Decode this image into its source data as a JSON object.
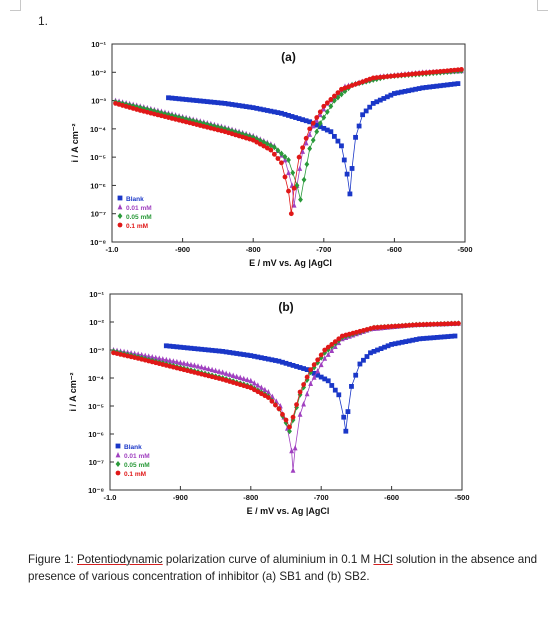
{
  "item_number": "1.",
  "caption": {
    "prefix": "Figure 1: ",
    "term1": "Potentiodynamic",
    "part2": " polarization curve of aluminium in 0.1 M ",
    "term2": "HCl",
    "part3": " solution in the absence and presence of various concentration of inhibitor (a) SB1 and (b) SB2."
  },
  "colors": {
    "blank": "#1a37c8",
    "c001": "#a040c0",
    "c005": "#2a9a3a",
    "c01": "#e01818"
  },
  "chart_data": [
    {
      "type": "scatter",
      "title": "(a)",
      "xlabel": "E / mV vs. Ag |AgCl",
      "ylabel": "i / A cm⁻²",
      "xlim": [
        -1000,
        -500
      ],
      "ylim": [
        -8,
        -1
      ],
      "yscale": "log",
      "x_ticks": [
        "-1.0",
        "-900",
        "-800",
        "-700",
        "-600",
        "-500"
      ],
      "y_ticks": [
        "10⁻¹",
        "10⁻²",
        "10⁻³",
        "10⁻⁴",
        "10⁻⁵",
        "10⁻⁶",
        "10⁻⁷",
        "10⁻⁸"
      ],
      "legend_position": "bottom-left",
      "series": [
        {
          "name": "Blank",
          "marker": "square",
          "color": "#1a37c8",
          "ecorr": -665,
          "points": [
            [
              -920,
              -2.9
            ],
            [
              -880,
              -3.0
            ],
            [
              -840,
              -3.1
            ],
            [
              -800,
              -3.25
            ],
            [
              -760,
              -3.45
            ],
            [
              -720,
              -3.75
            ],
            [
              -690,
              -4.1
            ],
            [
              -675,
              -4.6
            ],
            [
              -667,
              -5.6
            ],
            [
              -663,
              -6.3
            ],
            [
              -660,
              -5.4
            ],
            [
              -655,
              -4.3
            ],
            [
              -645,
              -3.5
            ],
            [
              -630,
              -3.1
            ],
            [
              -600,
              -2.75
            ],
            [
              -560,
              -2.55
            ],
            [
              -510,
              -2.4
            ]
          ]
        },
        {
          "name": "0.01 mM",
          "marker": "triangle",
          "color": "#a040c0",
          "ecorr": -740,
          "points": [
            [
              -995,
              -3.0
            ],
            [
              -960,
              -3.2
            ],
            [
              -920,
              -3.45
            ],
            [
              -880,
              -3.7
            ],
            [
              -840,
              -3.95
            ],
            [
              -800,
              -4.25
            ],
            [
              -770,
              -4.6
            ],
            [
              -755,
              -5.1
            ],
            [
              -745,
              -6.0
            ],
            [
              -742,
              -6.7
            ],
            [
              -738,
              -6.0
            ],
            [
              -730,
              -4.8
            ],
            [
              -715,
              -3.9
            ],
            [
              -695,
              -3.1
            ],
            [
              -670,
              -2.5
            ],
            [
              -620,
              -2.15
            ],
            [
              -560,
              -2.0
            ],
            [
              -505,
              -1.95
            ]
          ]
        },
        {
          "name": "0.05 mM",
          "marker": "diamond",
          "color": "#2a9a3a",
          "ecorr": -730,
          "points": [
            [
              -995,
              -3.05
            ],
            [
              -960,
              -3.25
            ],
            [
              -920,
              -3.5
            ],
            [
              -880,
              -3.75
            ],
            [
              -840,
              -4.0
            ],
            [
              -800,
              -4.3
            ],
            [
              -770,
              -4.65
            ],
            [
              -750,
              -5.1
            ],
            [
              -738,
              -6.0
            ],
            [
              -733,
              -6.5
            ],
            [
              -728,
              -5.8
            ],
            [
              -720,
              -4.7
            ],
            [
              -705,
              -3.8
            ],
            [
              -685,
              -3.0
            ],
            [
              -660,
              -2.45
            ],
            [
              -610,
              -2.15
            ],
            [
              -555,
              -2.05
            ],
            [
              -505,
              -1.95
            ]
          ]
        },
        {
          "name": "0.1 mM",
          "marker": "circle",
          "color": "#e01818",
          "ecorr": -746,
          "points": [
            [
              -995,
              -3.1
            ],
            [
              -960,
              -3.35
            ],
            [
              -920,
              -3.6
            ],
            [
              -880,
              -3.85
            ],
            [
              -840,
              -4.1
            ],
            [
              -800,
              -4.4
            ],
            [
              -775,
              -4.75
            ],
            [
              -760,
              -5.2
            ],
            [
              -750,
              -6.2
            ],
            [
              -746,
              -7.0
            ],
            [
              -742,
              -6.1
            ],
            [
              -735,
              -5.0
            ],
            [
              -720,
              -4.0
            ],
            [
              -700,
              -3.2
            ],
            [
              -675,
              -2.6
            ],
            [
              -630,
              -2.2
            ],
            [
              -570,
              -2.05
            ],
            [
              -505,
              -1.9
            ]
          ]
        }
      ]
    },
    {
      "type": "scatter",
      "title": "(b)",
      "xlabel": "E / mV vs. Ag |AgCl",
      "ylabel": "i / A cm⁻²",
      "xlim": [
        -1000,
        -500
      ],
      "ylim": [
        -8,
        -1
      ],
      "yscale": "log",
      "x_ticks": [
        "-1.0",
        "-900",
        "-800",
        "-700",
        "-600",
        "-500"
      ],
      "y_ticks": [
        "10⁻¹",
        "10⁻²",
        "10⁻³",
        "10⁻⁴",
        "10⁻⁵",
        "10⁻⁶",
        "10⁻⁷",
        "10⁻⁸"
      ],
      "legend_position": "bottom-left",
      "series": [
        {
          "name": "Blank",
          "marker": "square",
          "color": "#1a37c8",
          "ecorr": -665,
          "points": [
            [
              -920,
              -2.85
            ],
            [
              -880,
              -2.95
            ],
            [
              -840,
              -3.05
            ],
            [
              -800,
              -3.2
            ],
            [
              -760,
              -3.4
            ],
            [
              -720,
              -3.7
            ],
            [
              -690,
              -4.1
            ],
            [
              -675,
              -4.6
            ],
            [
              -668,
              -5.4
            ],
            [
              -665,
              -5.9
            ],
            [
              -662,
              -5.2
            ],
            [
              -657,
              -4.3
            ],
            [
              -645,
              -3.5
            ],
            [
              -630,
              -3.1
            ],
            [
              -600,
              -2.8
            ],
            [
              -560,
              -2.6
            ],
            [
              -510,
              -2.5
            ]
          ]
        },
        {
          "name": "0.01 mM",
          "marker": "triangle",
          "color": "#a040c0",
          "ecorr": -740,
          "points": [
            [
              -995,
              -3.0
            ],
            [
              -960,
              -3.15
            ],
            [
              -920,
              -3.35
            ],
            [
              -880,
              -3.55
            ],
            [
              -840,
              -3.8
            ],
            [
              -800,
              -4.1
            ],
            [
              -775,
              -4.5
            ],
            [
              -758,
              -5.0
            ],
            [
              -748,
              -5.8
            ],
            [
              -742,
              -6.6
            ],
            [
              -740,
              -7.3
            ],
            [
              -737,
              -6.5
            ],
            [
              -730,
              -5.3
            ],
            [
              -715,
              -4.2
            ],
            [
              -695,
              -3.3
            ],
            [
              -670,
              -2.6
            ],
            [
              -630,
              -2.25
            ],
            [
              -570,
              -2.1
            ],
            [
              -505,
              -2.05
            ]
          ]
        },
        {
          "name": "0.05 mM",
          "marker": "diamond",
          "color": "#2a9a3a",
          "ecorr": -745,
          "points": [
            [
              -995,
              -3.05
            ],
            [
              -960,
              -3.25
            ],
            [
              -920,
              -3.5
            ],
            [
              -880,
              -3.75
            ],
            [
              -840,
              -4.0
            ],
            [
              -800,
              -4.3
            ],
            [
              -775,
              -4.65
            ],
            [
              -760,
              -5.1
            ],
            [
              -750,
              -5.6
            ],
            [
              -745,
              -5.9
            ],
            [
              -740,
              -5.5
            ],
            [
              -730,
              -4.6
            ],
            [
              -715,
              -3.8
            ],
            [
              -695,
              -3.1
            ],
            [
              -670,
              -2.55
            ],
            [
              -625,
              -2.2
            ],
            [
              -565,
              -2.1
            ],
            [
              -505,
              -2.05
            ]
          ]
        },
        {
          "name": "0.1 mM",
          "marker": "circle",
          "color": "#e01818",
          "ecorr": -745,
          "points": [
            [
              -995,
              -3.1
            ],
            [
              -960,
              -3.3
            ],
            [
              -920,
              -3.55
            ],
            [
              -880,
              -3.8
            ],
            [
              -840,
              -4.05
            ],
            [
              -800,
              -4.35
            ],
            [
              -775,
              -4.7
            ],
            [
              -760,
              -5.1
            ],
            [
              -750,
              -5.5
            ],
            [
              -745,
              -5.75
            ],
            [
              -740,
              -5.4
            ],
            [
              -730,
              -4.5
            ],
            [
              -715,
              -3.7
            ],
            [
              -695,
              -3.0
            ],
            [
              -670,
              -2.5
            ],
            [
              -625,
              -2.2
            ],
            [
              -565,
              -2.1
            ],
            [
              -505,
              -2.05
            ]
          ]
        }
      ]
    }
  ]
}
